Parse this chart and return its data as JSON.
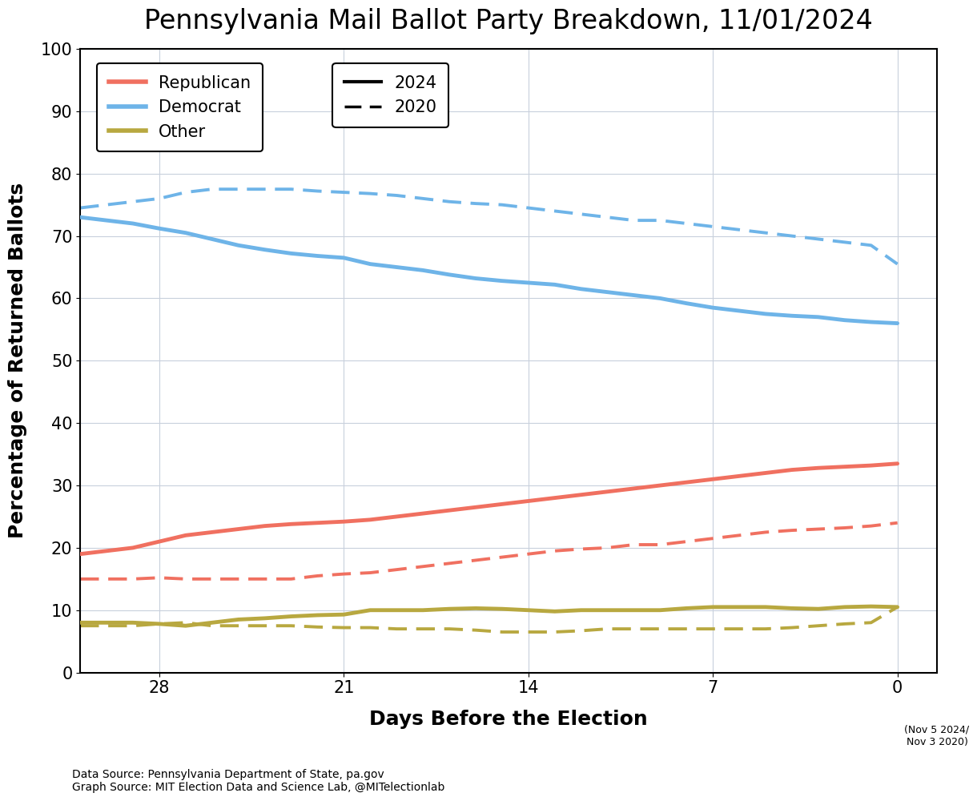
{
  "title": "Pennsylvania Mail Ballot Party Breakdown, 11/01/2024",
  "xlabel": "Days Before the Election",
  "ylabel": "Percentage of Returned Ballots",
  "source_text": "Data Source: Pennsylvania Department of State, pa.gov\nGraph Source: MIT Election Data and Science Lab, @MITelectionlab",
  "note_text": "(Nov 5 2024/\nNov 3 2020)",
  "ylim": [
    0,
    100
  ],
  "yticks": [
    0,
    10,
    20,
    30,
    40,
    50,
    60,
    70,
    80,
    90,
    100
  ],
  "xticks": [
    28,
    21,
    14,
    7,
    0
  ],
  "x_2024": [
    31,
    30,
    29,
    28,
    27,
    26,
    25,
    24,
    23,
    22,
    21,
    20,
    19,
    18,
    17,
    16,
    15,
    14,
    13,
    12,
    11,
    10,
    9,
    8,
    7,
    6,
    5,
    4,
    3,
    2,
    1,
    0
  ],
  "x_2020": [
    31,
    30,
    29,
    28,
    27,
    26,
    25,
    24,
    23,
    22,
    21,
    20,
    19,
    18,
    17,
    16,
    15,
    14,
    13,
    12,
    11,
    10,
    9,
    8,
    7,
    6,
    5,
    4,
    3,
    2,
    1,
    0
  ],
  "dem_2024": [
    73,
    72.5,
    72,
    71.2,
    70.5,
    69.5,
    68.5,
    67.8,
    67.2,
    66.8,
    66.5,
    65.5,
    65.0,
    64.5,
    63.8,
    63.2,
    62.8,
    62.5,
    62.2,
    61.5,
    61.0,
    60.5,
    60.0,
    59.2,
    58.5,
    58.0,
    57.5,
    57.2,
    57.0,
    56.5,
    56.2,
    56.0
  ],
  "rep_2024": [
    19,
    19.5,
    20.0,
    21.0,
    22.0,
    22.5,
    23.0,
    23.5,
    23.8,
    24.0,
    24.2,
    24.5,
    25.0,
    25.5,
    26.0,
    26.5,
    27.0,
    27.5,
    28.0,
    28.5,
    29.0,
    29.5,
    30.0,
    30.5,
    31.0,
    31.5,
    32.0,
    32.5,
    32.8,
    33.0,
    33.2,
    33.5
  ],
  "other_2024": [
    8.0,
    8.0,
    8.0,
    7.8,
    7.5,
    8.0,
    8.5,
    8.7,
    9.0,
    9.2,
    9.3,
    10.0,
    10.0,
    10.0,
    10.2,
    10.3,
    10.2,
    10.0,
    9.8,
    10.0,
    10.0,
    10.0,
    10.0,
    10.3,
    10.5,
    10.5,
    10.5,
    10.3,
    10.2,
    10.5,
    10.6,
    10.5
  ],
  "dem_2020": [
    74.5,
    75.0,
    75.5,
    76.0,
    77.0,
    77.5,
    77.5,
    77.5,
    77.5,
    77.2,
    77.0,
    76.8,
    76.5,
    76.0,
    75.5,
    75.2,
    75.0,
    74.5,
    74.0,
    73.5,
    73.0,
    72.5,
    72.5,
    72.0,
    71.5,
    71.0,
    70.5,
    70.0,
    69.5,
    69.0,
    68.5,
    65.5
  ],
  "rep_2020": [
    15.0,
    15.0,
    15.0,
    15.2,
    15.0,
    15.0,
    15.0,
    15.0,
    15.0,
    15.5,
    15.8,
    16.0,
    16.5,
    17.0,
    17.5,
    18.0,
    18.5,
    19.0,
    19.5,
    19.8,
    20.0,
    20.5,
    20.5,
    21.0,
    21.5,
    22.0,
    22.5,
    22.8,
    23.0,
    23.2,
    23.5,
    24.0
  ],
  "other_2020": [
    7.5,
    7.5,
    7.5,
    7.8,
    8.0,
    7.5,
    7.5,
    7.5,
    7.5,
    7.3,
    7.2,
    7.2,
    7.0,
    7.0,
    7.0,
    6.8,
    6.5,
    6.5,
    6.5,
    6.7,
    7.0,
    7.0,
    7.0,
    7.0,
    7.0,
    7.0,
    7.0,
    7.2,
    7.5,
    7.8,
    8.0,
    10.5
  ],
  "color_rep": "#F07060",
  "color_dem": "#6EB4E8",
  "color_other": "#B8A840",
  "bg_color": "#FFFFFF",
  "plot_bg": "#FFFFFF",
  "linewidth_solid": 3.5,
  "linewidth_dashed": 2.8,
  "title_fontsize": 24,
  "label_fontsize": 18,
  "tick_fontsize": 15,
  "legend_fontsize": 15,
  "source_fontsize": 10
}
